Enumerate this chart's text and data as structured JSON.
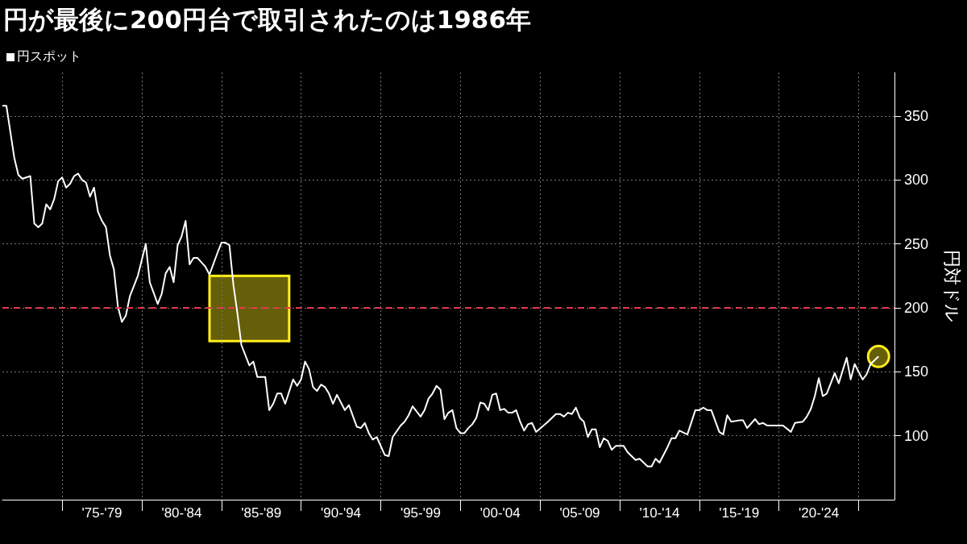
{
  "chart_data": {
    "type": "line",
    "title": "円が最後に200円台で取引されたのは1986年",
    "ylabel": "円対ドル",
    "categories": [
      null,
      null,
      null,
      null,
      null,
      null,
      null,
      null,
      null,
      null,
      null,
      null,
      null,
      null,
      null,
      null,
      null,
      null,
      null,
      null,
      null,
      null,
      null,
      null,
      null,
      "'75-'79",
      null,
      null,
      null,
      null,
      null,
      null,
      null,
      null,
      null,
      null,
      null,
      null,
      null,
      null,
      null,
      null,
      null,
      null,
      null,
      "'80-'84",
      null,
      null,
      null,
      null,
      null,
      null,
      null,
      null,
      null,
      null,
      null,
      null,
      null,
      null,
      null,
      null,
      null,
      null,
      null,
      "'85-'89",
      null,
      null,
      null,
      null,
      null,
      null,
      null,
      null,
      null,
      null,
      null,
      null,
      null,
      null,
      null,
      null,
      null,
      null,
      null,
      "'90-'94",
      null,
      null,
      null,
      null,
      null,
      null,
      null,
      null,
      null,
      null,
      null,
      null,
      null,
      null,
      null,
      null,
      null,
      null,
      null,
      "'95-'99",
      null,
      null,
      null,
      null,
      null,
      null,
      null,
      null,
      null,
      null,
      null,
      null,
      null,
      null,
      null,
      null,
      null,
      null,
      null,
      "'00-'04",
      null,
      null,
      null,
      null,
      null,
      null,
      null,
      null,
      null,
      null,
      null,
      null,
      null,
      null,
      null,
      null,
      null,
      null,
      null,
      "'05-'09",
      null,
      null,
      null,
      null,
      null,
      null,
      null,
      null,
      null,
      null,
      null,
      null,
      null,
      null,
      null,
      null,
      null,
      null,
      null,
      "'10-'14",
      null,
      null,
      null,
      null,
      null,
      null,
      null,
      null,
      null,
      null,
      null,
      null,
      null,
      null,
      null,
      null,
      null,
      null,
      null,
      "'15-'19",
      null,
      null,
      null,
      null,
      null,
      null,
      null,
      null,
      null,
      null,
      null,
      null,
      null,
      null,
      null,
      null,
      null,
      null,
      null,
      "'20-'24",
      null,
      null,
      null,
      null,
      null,
      null,
      null,
      null,
      null,
      null,
      null,
      null,
      null,
      null,
      null,
      null,
      null,
      null,
      null
    ],
    "ylim": [
      50,
      384
    ],
    "yticks": [
      100,
      150,
      200,
      250,
      300,
      350
    ],
    "grid": true,
    "legend": "top left",
    "marker": "none",
    "line_style": "solid",
    "ref_lines": [
      {
        "axis": "y",
        "value": 200,
        "color": "#e8374b",
        "line_style": "dashed"
      }
    ],
    "series": [
      {
        "name": "円スポット",
        "color": "#ffffff",
        "values": [
          358,
          358,
          null,
          317,
          304,
          301,
          null,
          303,
          266,
          263,
          266,
          281,
          277,
          285,
          299,
          302,
          294,
          297,
          303,
          305,
          300,
          298,
          287,
          294,
          275,
          268,
          263,
          241,
          230,
          201,
          189,
          194,
          209,
          null,
          225,
          null,
          250,
          220,
          null,
          203,
          211,
          227,
          232,
          220,
          249,
          256,
          268,
          234,
          239,
          239,
          null,
          232,
          226,
          null,
          243,
          251,
          251,
          249,
          218,
          196,
          171,
          null,
          155,
          158,
          146,
          146,
          146,
          120,
          125,
          133,
          133,
          125,
          null,
          144,
          139,
          144,
          158,
          152,
          138,
          135,
          140,
          138,
          133,
          125,
          132,
          null,
          120,
          124,
          null,
          107,
          106,
          110,
          102,
          97,
          99,
          null,
          85,
          84,
          99,
          null,
          108,
          111,
          116,
          123,
          null,
          115,
          120,
          129,
          133,
          139,
          136,
          113,
          118,
          120,
          106,
          102,
          102,
          106,
          109,
          114,
          126,
          125,
          120,
          132,
          133,
          120,
          121,
          118,
          118,
          120,
          111,
          104,
          109,
          110,
          103,
          null,
          null,
          111,
          114,
          117,
          117,
          115,
          118,
          117,
          122,
          114,
          111,
          99,
          105,
          105,
          91,
          98,
          96,
          89,
          92,
          null,
          92,
          87,
          84,
          81,
          82,
          79,
          76,
          76,
          82,
          79,
          null,
          91,
          98,
          98,
          104,
          null,
          101,
          null,
          120,
          120,
          122,
          120,
          120,
          null,
          103,
          101,
          116,
          111,
          null,
          112,
          112,
          106,
          null,
          113,
          109,
          110,
          108,
          108,
          108,
          null,
          108,
          null,
          103,
          110,
          null,
          111,
          115,
          121,
          131,
          145,
          131,
          133,
          null,
          149,
          141,
          null,
          161,
          144,
          156,
          null,
          144,
          148,
          156,
          null,
          162,
          null,
          null,
          null,
          null
        ]
      }
    ]
  }
}
